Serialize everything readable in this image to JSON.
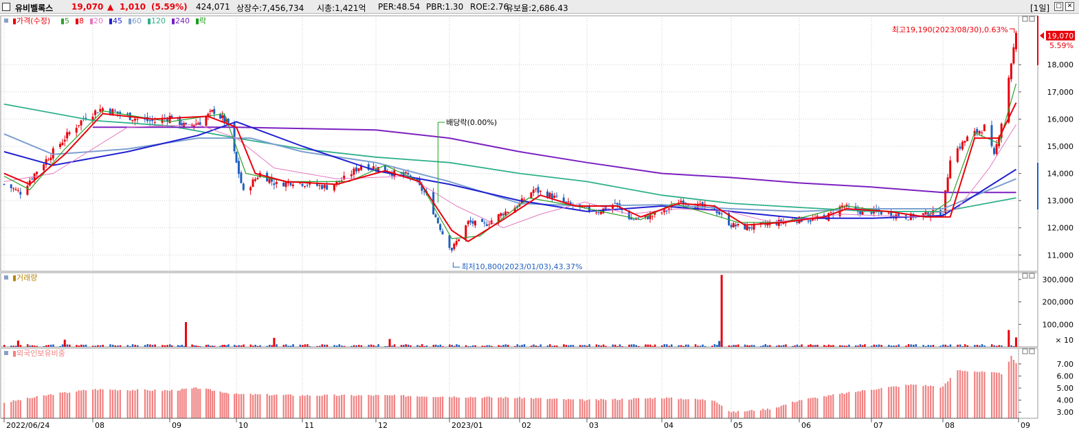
{
  "header": {
    "name": "유비벨록스",
    "price": "19,070",
    "change_arrow": "▲",
    "change": "1,010",
    "change_pct": "(5.59%)",
    "volume": "424,071",
    "listed": "상장수:7,456,734",
    "mcap": "시총:1,421억",
    "per": "PER:48.54",
    "pbr": "PBR:1.30",
    "roe": "ROE:2.76",
    "float": "유보율:2,686.43",
    "period": "[1일]"
  },
  "legend": {
    "price_label": "가격(수정)",
    "ma": [
      {
        "label": "5",
        "color": "#2ca02c"
      },
      {
        "label": "8",
        "color": "#e8000b"
      },
      {
        "label": "20",
        "color": "#e377c2"
      },
      {
        "label": "45",
        "color": "#1f1fd0"
      },
      {
        "label": "60",
        "color": "#7b9fd0"
      },
      {
        "label": "120",
        "color": "#2eb08a"
      },
      {
        "label": "240",
        "color": "#7a1fc0"
      }
    ],
    "ex_label": "락"
  },
  "annotations": {
    "high": "최고19,190(2023/08/30),0.63%",
    "low": "최저10,800(2023/01/03),43.37%",
    "dividend": "배당락(0.00%)",
    "last_price": "19,070",
    "last_pct": "5.59%"
  },
  "colors": {
    "up": "#e8000b",
    "down": "#1f5fc0",
    "volume_up": "#e8000b",
    "volume_down": "#1f5fc0",
    "foreign": "#f08080"
  },
  "chart_data": [
    {
      "type": "candlestick",
      "title": "가격(수정)",
      "ylim": [
        10400,
        19800
      ],
      "yticks": [
        11000,
        12000,
        13000,
        14000,
        15000,
        16000,
        17000,
        18000
      ],
      "yticklabels": [
        "11,000",
        "12,000",
        "13,000",
        "14,000",
        "15,000",
        "16,000",
        "17,000",
        "18,000"
      ],
      "xticks": [
        {
          "date": "2022-06-24",
          "label": "2022/06/24"
        },
        {
          "date": "2022-08-01",
          "label": "08"
        },
        {
          "date": "2022-09-01",
          "label": "09"
        },
        {
          "date": "2022-10-04",
          "label": "10"
        },
        {
          "date": "2022-11-01",
          "label": "11"
        },
        {
          "date": "2022-12-01",
          "label": "12"
        },
        {
          "date": "2023-01-02",
          "label": "2023/01"
        },
        {
          "date": "2023-02-01",
          "label": "02"
        },
        {
          "date": "2023-03-02",
          "label": "03"
        },
        {
          "date": "2023-04-03",
          "label": "04"
        },
        {
          "date": "2023-05-02",
          "label": "05"
        },
        {
          "date": "2023-06-01",
          "label": "06"
        },
        {
          "date": "2023-07-03",
          "label": "07"
        },
        {
          "date": "2023-08-01",
          "label": "08"
        },
        {
          "date": "2023-09-01",
          "label": "09"
        }
      ],
      "price_path": [
        [
          "2022-06-24",
          13600
        ],
        [
          "2022-07-01",
          13300
        ],
        [
          "2022-07-08",
          14100
        ],
        [
          "2022-07-15",
          14800
        ],
        [
          "2022-07-22",
          15500
        ],
        [
          "2022-07-29",
          16100
        ],
        [
          "2022-08-05",
          16400
        ],
        [
          "2022-08-12",
          16200
        ],
        [
          "2022-08-19",
          16000
        ],
        [
          "2022-08-26",
          15900
        ],
        [
          "2022-09-02",
          16100
        ],
        [
          "2022-09-09",
          15700
        ],
        [
          "2022-09-16",
          15900
        ],
        [
          "2022-09-23",
          16300
        ],
        [
          "2022-09-30",
          15800
        ],
        [
          "2022-10-07",
          13300
        ],
        [
          "2022-10-14",
          14000
        ],
        [
          "2022-10-21",
          13600
        ],
        [
          "2022-10-28",
          13700
        ],
        [
          "2022-11-04",
          13600
        ],
        [
          "2022-11-11",
          13500
        ],
        [
          "2022-11-18",
          13800
        ],
        [
          "2022-11-25",
          14300
        ],
        [
          "2022-12-02",
          14200
        ],
        [
          "2022-12-09",
          14000
        ],
        [
          "2022-12-16",
          13900
        ],
        [
          "2022-12-23",
          13200
        ],
        [
          "2022-12-30",
          11800
        ],
        [
          "2023-01-03",
          11200
        ],
        [
          "2023-01-10",
          12200
        ],
        [
          "2023-01-17",
          12100
        ],
        [
          "2023-01-24",
          12500
        ],
        [
          "2023-01-31",
          12800
        ],
        [
          "2023-02-07",
          13400
        ],
        [
          "2023-02-14",
          13200
        ],
        [
          "2023-02-21",
          12900
        ],
        [
          "2023-02-28",
          12700
        ],
        [
          "2023-03-07",
          12600
        ],
        [
          "2023-03-14",
          12900
        ],
        [
          "2023-03-21",
          12300
        ],
        [
          "2023-03-28",
          12400
        ],
        [
          "2023-04-04",
          12600
        ],
        [
          "2023-04-11",
          13000
        ],
        [
          "2023-04-18",
          12800
        ],
        [
          "2023-04-25",
          12700
        ],
        [
          "2023-05-02",
          12100
        ],
        [
          "2023-05-09",
          12000
        ],
        [
          "2023-05-16",
          12100
        ],
        [
          "2023-05-23",
          12200
        ],
        [
          "2023-05-30",
          12300
        ],
        [
          "2023-06-06",
          12300
        ],
        [
          "2023-06-13",
          12400
        ],
        [
          "2023-06-20",
          12800
        ],
        [
          "2023-06-27",
          12600
        ],
        [
          "2023-07-04",
          12600
        ],
        [
          "2023-07-11",
          12500
        ],
        [
          "2023-07-18",
          12400
        ],
        [
          "2023-07-25",
          12500
        ],
        [
          "2023-08-01",
          12600
        ],
        [
          "2023-08-04",
          14600
        ],
        [
          "2023-08-11",
          15300
        ],
        [
          "2023-08-18",
          15700
        ],
        [
          "2023-08-22",
          14600
        ],
        [
          "2023-08-25",
          15900
        ],
        [
          "2023-08-29",
          18100
        ],
        [
          "2023-08-31",
          19070
        ]
      ],
      "moving_averages": {
        "120": [
          [
            "2022-06-24",
            16550
          ],
          [
            "2022-08-01",
            15950
          ],
          [
            "2022-09-01",
            15750
          ],
          [
            "2022-10-04",
            15300
          ],
          [
            "2022-11-01",
            14900
          ],
          [
            "2022-12-01",
            14600
          ],
          [
            "2023-01-02",
            14400
          ],
          [
            "2023-02-01",
            14000
          ],
          [
            "2023-03-02",
            13700
          ],
          [
            "2023-04-03",
            13200
          ],
          [
            "2023-05-02",
            12900
          ],
          [
            "2023-06-01",
            12750
          ],
          [
            "2023-07-03",
            12600
          ],
          [
            "2023-08-01",
            12600
          ],
          [
            "2023-08-31",
            13100
          ]
        ],
        "240": [
          [
            "2022-08-01",
            15700
          ],
          [
            "2022-10-04",
            15700
          ],
          [
            "2022-12-01",
            15600
          ],
          [
            "2023-01-02",
            15300
          ],
          [
            "2023-02-01",
            14800
          ],
          [
            "2023-03-02",
            14400
          ],
          [
            "2023-04-03",
            14000
          ],
          [
            "2023-05-02",
            13850
          ],
          [
            "2023-06-01",
            13650
          ],
          [
            "2023-07-03",
            13500
          ],
          [
            "2023-08-01",
            13300
          ],
          [
            "2023-08-31",
            13300
          ]
        ],
        "60": [
          [
            "2022-06-24",
            15450
          ],
          [
            "2022-07-15",
            14700
          ],
          [
            "2022-08-15",
            14900
          ],
          [
            "2022-09-15",
            15300
          ],
          [
            "2022-10-10",
            15300
          ],
          [
            "2022-11-01",
            14800
          ],
          [
            "2022-12-01",
            14400
          ],
          [
            "2023-01-02",
            13700
          ],
          [
            "2023-02-01",
            12900
          ],
          [
            "2023-03-02",
            12800
          ],
          [
            "2023-04-03",
            12850
          ],
          [
            "2023-05-02",
            12700
          ],
          [
            "2023-06-01",
            12600
          ],
          [
            "2023-07-03",
            12700
          ],
          [
            "2023-08-01",
            12700
          ],
          [
            "2023-08-31",
            13800
          ]
        ],
        "45": [
          [
            "2022-06-24",
            14800
          ],
          [
            "2022-07-15",
            14300
          ],
          [
            "2022-08-15",
            14800
          ],
          [
            "2022-09-15",
            15400
          ],
          [
            "2022-10-04",
            15900
          ],
          [
            "2022-11-01",
            15000
          ],
          [
            "2022-12-01",
            14100
          ],
          [
            "2023-01-02",
            13600
          ],
          [
            "2023-02-01",
            13000
          ],
          [
            "2023-03-02",
            12600
          ],
          [
            "2023-04-03",
            12800
          ],
          [
            "2023-05-02",
            12600
          ],
          [
            "2023-06-01",
            12350
          ],
          [
            "2023-07-03",
            12350
          ],
          [
            "2023-08-01",
            12450
          ],
          [
            "2023-08-31",
            14150
          ]
        ],
        "20": [
          [
            "2022-06-24",
            13700
          ],
          [
            "2022-07-15",
            14000
          ],
          [
            "2022-08-15",
            15700
          ],
          [
            "2022-09-15",
            15800
          ],
          [
            "2022-10-04",
            15300
          ],
          [
            "2022-10-20",
            14200
          ],
          [
            "2022-11-15",
            13800
          ],
          [
            "2022-12-15",
            13900
          ],
          [
            "2023-01-05",
            12800
          ],
          [
            "2023-01-25",
            12000
          ],
          [
            "2023-02-10",
            12500
          ],
          [
            "2023-03-01",
            12950
          ],
          [
            "2023-03-20",
            12500
          ],
          [
            "2023-04-10",
            12700
          ],
          [
            "2023-05-01",
            12600
          ],
          [
            "2023-05-20",
            12200
          ],
          [
            "2023-06-20",
            12500
          ],
          [
            "2023-07-20",
            12400
          ],
          [
            "2023-08-07",
            12700
          ],
          [
            "2023-08-20",
            14200
          ],
          [
            "2023-08-31",
            15800
          ]
        ],
        "8": [
          [
            "2022-06-24",
            14000
          ],
          [
            "2022-07-05",
            13600
          ],
          [
            "2022-07-20",
            14700
          ],
          [
            "2022-08-05",
            16200
          ],
          [
            "2022-08-25",
            16000
          ],
          [
            "2022-09-20",
            16100
          ],
          [
            "2022-10-04",
            15700
          ],
          [
            "2022-10-12",
            14000
          ],
          [
            "2022-10-25",
            13700
          ],
          [
            "2022-11-15",
            13600
          ],
          [
            "2022-12-05",
            14100
          ],
          [
            "2022-12-20",
            13700
          ],
          [
            "2023-01-03",
            11900
          ],
          [
            "2023-01-10",
            11500
          ],
          [
            "2023-01-25",
            12300
          ],
          [
            "2023-02-10",
            13200
          ],
          [
            "2023-02-25",
            12800
          ],
          [
            "2023-03-15",
            12800
          ],
          [
            "2023-03-25",
            12400
          ],
          [
            "2023-04-10",
            12900
          ],
          [
            "2023-04-25",
            12800
          ],
          [
            "2023-05-08",
            12100
          ],
          [
            "2023-05-25",
            12200
          ],
          [
            "2023-06-12",
            12400
          ],
          [
            "2023-06-22",
            12700
          ],
          [
            "2023-07-10",
            12600
          ],
          [
            "2023-07-25",
            12400
          ],
          [
            "2023-08-04",
            12400
          ],
          [
            "2023-08-14",
            15300
          ],
          [
            "2023-08-24",
            15300
          ],
          [
            "2023-08-31",
            16600
          ]
        ],
        "5": [
          [
            "2022-06-24",
            13900
          ],
          [
            "2022-07-05",
            13400
          ],
          [
            "2022-07-20",
            14900
          ],
          [
            "2022-08-05",
            16300
          ],
          [
            "2022-09-01",
            15900
          ],
          [
            "2022-09-28",
            16200
          ],
          [
            "2022-10-08",
            14000
          ],
          [
            "2022-10-25",
            13700
          ],
          [
            "2022-11-20",
            13700
          ],
          [
            "2022-12-05",
            14300
          ],
          [
            "2022-12-20",
            13700
          ],
          [
            "2023-01-03",
            11600
          ],
          [
            "2023-01-15",
            11700
          ],
          [
            "2023-02-05",
            13100
          ],
          [
            "2023-02-25",
            12800
          ],
          [
            "2023-03-25",
            12300
          ],
          [
            "2023-04-08",
            12900
          ],
          [
            "2023-05-05",
            12200
          ],
          [
            "2023-05-25",
            12200
          ],
          [
            "2023-06-22",
            12800
          ],
          [
            "2023-07-25",
            12400
          ],
          [
            "2023-08-04",
            13000
          ],
          [
            "2023-08-14",
            15500
          ],
          [
            "2023-08-24",
            15100
          ],
          [
            "2023-08-31",
            17300
          ]
        ]
      }
    },
    {
      "type": "bar",
      "title": "거래량",
      "ylim": [
        0,
        330000
      ],
      "yticks": [
        100000,
        200000,
        300000
      ],
      "yticklabels": [
        "100,000",
        "200,000",
        "300,000"
      ],
      "unit_label": "× 10",
      "spikes": [
        {
          "date": "2022-06-30",
          "value": 28000
        },
        {
          "date": "2022-07-20",
          "value": 32000
        },
        {
          "date": "2022-09-09",
          "value": 110000
        },
        {
          "date": "2022-10-20",
          "value": 40000
        },
        {
          "date": "2022-12-07",
          "value": 35000
        },
        {
          "date": "2023-04-28",
          "value": 320000
        },
        {
          "date": "2023-08-28",
          "value": 75000
        },
        {
          "date": "2023-08-31",
          "value": 42000
        }
      ]
    },
    {
      "type": "bar",
      "title": "외국인보유비중",
      "ylim": [
        2.5,
        8.3
      ],
      "yticks": [
        3.0,
        4.0,
        5.0,
        6.0,
        7.0
      ],
      "yticklabels": [
        "3.00",
        "4.00",
        "5.00",
        "6.00",
        "7.00"
      ],
      "values_path": [
        [
          "2022-06-24",
          3.8
        ],
        [
          "2022-07-15",
          4.5
        ],
        [
          "2022-08-01",
          4.9
        ],
        [
          "2022-09-01",
          4.8
        ],
        [
          "2022-09-15",
          5.0
        ],
        [
          "2022-10-04",
          4.5
        ],
        [
          "2022-11-01",
          4.4
        ],
        [
          "2022-12-01",
          4.4
        ],
        [
          "2023-01-02",
          4.3
        ],
        [
          "2023-02-01",
          4.2
        ],
        [
          "2023-03-02",
          4.0
        ],
        [
          "2023-04-03",
          4.2
        ],
        [
          "2023-04-25",
          4.0
        ],
        [
          "2023-05-02",
          3.0
        ],
        [
          "2023-05-20",
          3.3
        ],
        [
          "2023-06-01",
          4.0
        ],
        [
          "2023-07-03",
          4.9
        ],
        [
          "2023-07-20",
          5.3
        ],
        [
          "2023-08-01",
          5.1
        ],
        [
          "2023-08-07",
          6.5
        ],
        [
          "2023-08-25",
          6.2
        ],
        [
          "2023-08-29",
          7.6
        ],
        [
          "2023-08-31",
          7.0
        ]
      ]
    }
  ]
}
